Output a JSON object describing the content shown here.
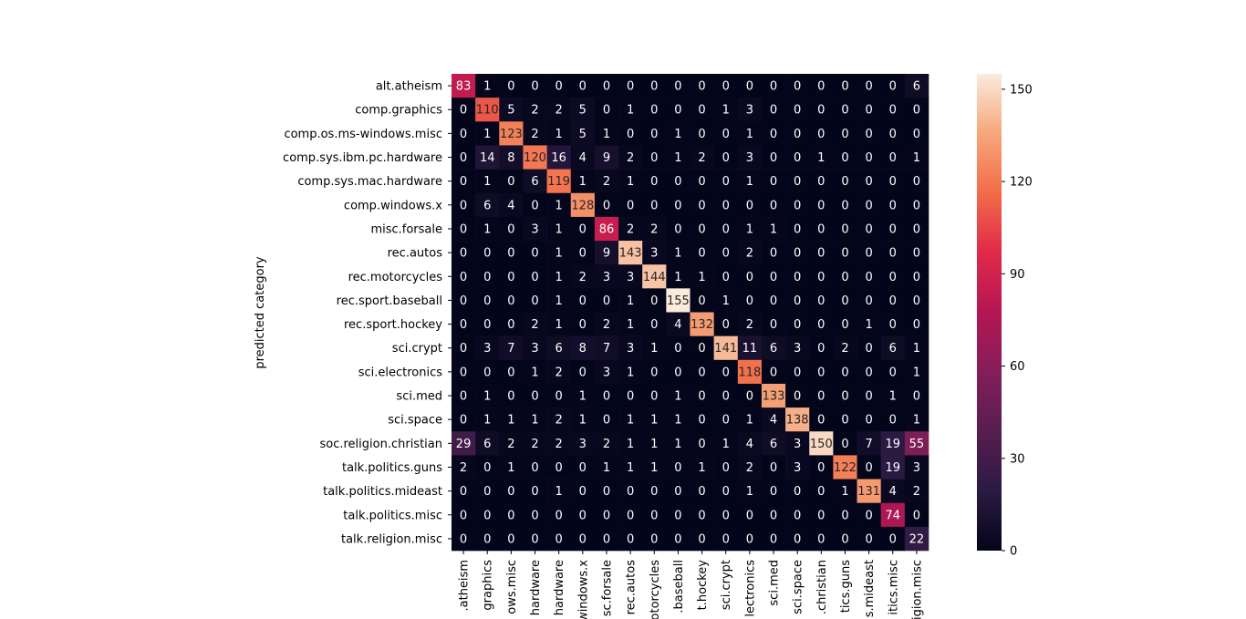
{
  "chart_data": {
    "type": "heatmap",
    "ylabel": "predicted category",
    "xlabel": "",
    "rows": [
      "alt.atheism",
      "comp.graphics",
      "comp.os.ms-windows.misc",
      "comp.sys.ibm.pc.hardware",
      "comp.sys.mac.hardware",
      "comp.windows.x",
      "misc.forsale",
      "rec.autos",
      "rec.motorcycles",
      "rec.sport.baseball",
      "rec.sport.hockey",
      "sci.crypt",
      "sci.electronics",
      "sci.med",
      "sci.space",
      "soc.religion.christian",
      "talk.politics.guns",
      "talk.politics.mideast",
      "talk.politics.misc",
      "talk.religion.misc"
    ],
    "columns": [
      ".atheism",
      "graphics",
      "ows.misc",
      "hardware",
      "hardware",
      "windows.x",
      "sc.forsale",
      "rec.autos",
      "otorcycles",
      ".baseball",
      "t.hockey",
      "sci.crypt",
      "lectronics",
      "sci.med",
      "sci.space",
      ".christian",
      "tics.guns",
      "s.mideast",
      "itics.misc",
      "igion.misc"
    ],
    "matrix": [
      [
        83,
        1,
        0,
        0,
        0,
        0,
        0,
        0,
        0,
        0,
        0,
        0,
        0,
        0,
        0,
        0,
        0,
        0,
        0,
        6
      ],
      [
        0,
        110,
        5,
        2,
        2,
        5,
        0,
        1,
        0,
        0,
        0,
        1,
        3,
        0,
        0,
        0,
        0,
        0,
        0,
        0
      ],
      [
        0,
        1,
        123,
        2,
        1,
        5,
        1,
        0,
        0,
        1,
        0,
        0,
        1,
        0,
        0,
        0,
        0,
        0,
        0,
        0
      ],
      [
        0,
        14,
        8,
        120,
        16,
        4,
        9,
        2,
        0,
        1,
        2,
        0,
        3,
        0,
        0,
        1,
        0,
        0,
        0,
        1
      ],
      [
        0,
        1,
        0,
        6,
        119,
        1,
        2,
        1,
        0,
        0,
        0,
        0,
        1,
        0,
        0,
        0,
        0,
        0,
        0,
        0
      ],
      [
        0,
        6,
        4,
        0,
        1,
        128,
        0,
        0,
        0,
        0,
        0,
        0,
        0,
        0,
        0,
        0,
        0,
        0,
        0,
        0
      ],
      [
        0,
        1,
        0,
        3,
        1,
        0,
        86,
        2,
        2,
        0,
        0,
        0,
        1,
        1,
        0,
        0,
        0,
        0,
        0,
        0
      ],
      [
        0,
        0,
        0,
        0,
        1,
        0,
        9,
        143,
        3,
        1,
        0,
        0,
        2,
        0,
        0,
        0,
        0,
        0,
        0,
        0
      ],
      [
        0,
        0,
        0,
        0,
        1,
        2,
        3,
        3,
        144,
        1,
        1,
        0,
        0,
        0,
        0,
        0,
        0,
        0,
        0,
        0
      ],
      [
        0,
        0,
        0,
        0,
        1,
        0,
        0,
        1,
        0,
        155,
        0,
        1,
        0,
        0,
        0,
        0,
        0,
        0,
        0,
        0
      ],
      [
        0,
        0,
        0,
        2,
        1,
        0,
        2,
        1,
        0,
        4,
        132,
        0,
        2,
        0,
        0,
        0,
        0,
        1,
        0,
        0
      ],
      [
        0,
        3,
        7,
        3,
        6,
        8,
        7,
        3,
        1,
        0,
        0,
        141,
        11,
        6,
        3,
        0,
        2,
        0,
        6,
        1
      ],
      [
        0,
        0,
        0,
        1,
        2,
        0,
        3,
        1,
        0,
        0,
        0,
        0,
        118,
        0,
        0,
        0,
        0,
        0,
        0,
        1
      ],
      [
        0,
        1,
        0,
        0,
        0,
        1,
        0,
        0,
        0,
        1,
        0,
        0,
        0,
        133,
        0,
        0,
        0,
        0,
        1,
        0
      ],
      [
        0,
        1,
        1,
        1,
        2,
        1,
        0,
        1,
        1,
        1,
        0,
        0,
        1,
        4,
        138,
        0,
        0,
        0,
        0,
        1
      ],
      [
        29,
        6,
        2,
        2,
        2,
        3,
        2,
        1,
        1,
        1,
        0,
        1,
        4,
        6,
        3,
        150,
        0,
        7,
        19,
        55
      ],
      [
        2,
        0,
        1,
        0,
        0,
        0,
        1,
        1,
        1,
        0,
        1,
        0,
        2,
        0,
        3,
        0,
        122,
        0,
        19,
        3
      ],
      [
        0,
        0,
        0,
        0,
        1,
        0,
        0,
        0,
        0,
        0,
        0,
        0,
        1,
        0,
        0,
        0,
        1,
        131,
        4,
        2
      ],
      [
        0,
        0,
        0,
        0,
        0,
        0,
        0,
        0,
        0,
        0,
        0,
        0,
        0,
        0,
        0,
        0,
        0,
        0,
        74,
        0
      ],
      [
        0,
        0,
        0,
        0,
        0,
        0,
        0,
        0,
        0,
        0,
        0,
        0,
        0,
        0,
        0,
        0,
        0,
        0,
        0,
        22
      ]
    ],
    "vmin": 0,
    "vmax": 155,
    "colorbar_ticks": [
      "0",
      "30",
      "60",
      "90",
      "120",
      "150"
    ],
    "colormap": "rocket",
    "annotate": true
  }
}
